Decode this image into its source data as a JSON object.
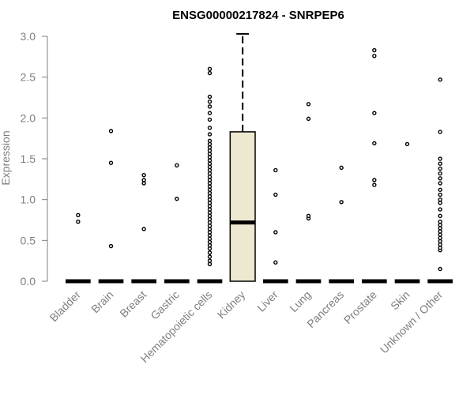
{
  "chart_data": {
    "type": "box",
    "title": "ENSG00000217824 - SNRPEP6",
    "xlabel": "",
    "ylabel": "Expression",
    "ylim": [
      0,
      3.05
    ],
    "yticks": [
      0.0,
      0.5,
      1.0,
      1.5,
      2.0,
      2.5,
      3.0
    ],
    "ytick_labels": [
      "0.0",
      "0.5",
      "1.0",
      "1.5",
      "2.0",
      "2.5",
      "3.0"
    ],
    "categories": [
      "Bladder",
      "Brain",
      "Breast",
      "Gastric",
      "Hematopoietic cells",
      "Kidney",
      "Liver",
      "Lung",
      "Pancreas",
      "Prostate",
      "Skin",
      "Unknown / Other"
    ],
    "box_fill": "#ede8d0",
    "boxes": [
      {
        "category": "Bladder",
        "min": 0,
        "q1": 0,
        "median": 0,
        "q3": 0,
        "max": 0,
        "outliers": [
          0.73,
          0.81
        ]
      },
      {
        "category": "Brain",
        "min": 0,
        "q1": 0,
        "median": 0,
        "q3": 0,
        "max": 0,
        "outliers": [
          0.43,
          1.45,
          1.84
        ]
      },
      {
        "category": "Breast",
        "min": 0,
        "q1": 0,
        "median": 0,
        "q3": 0,
        "max": 0,
        "outliers": [
          0.64,
          1.2,
          1.24,
          1.3
        ]
      },
      {
        "category": "Gastric",
        "min": 0,
        "q1": 0,
        "median": 0,
        "q3": 0,
        "max": 0,
        "outliers": [
          1.01,
          1.42
        ]
      },
      {
        "category": "Hematopoietic cells",
        "min": 0,
        "q1": 0,
        "median": 0,
        "q3": 0,
        "max": 0,
        "outliers": [
          0.21,
          0.25,
          0.3,
          0.35,
          0.4,
          0.44,
          0.48,
          0.52,
          0.56,
          0.6,
          0.64,
          0.68,
          0.72,
          0.76,
          0.8,
          0.84,
          0.88,
          0.92,
          0.96,
          1.0,
          1.04,
          1.08,
          1.12,
          1.16,
          1.2,
          1.24,
          1.28,
          1.32,
          1.36,
          1.4,
          1.44,
          1.48,
          1.52,
          1.56,
          1.6,
          1.64,
          1.68,
          1.72,
          1.8,
          1.88,
          1.98,
          2.06,
          2.14,
          2.2,
          2.26,
          2.55,
          2.6
        ]
      },
      {
        "category": "Kidney",
        "min": 0,
        "q1": 0,
        "median": 0.72,
        "q3": 1.83,
        "max": 3.03,
        "outliers": []
      },
      {
        "category": "Liver",
        "min": 0,
        "q1": 0,
        "median": 0,
        "q3": 0,
        "max": 0,
        "outliers": [
          0.23,
          0.6,
          1.06,
          1.36
        ]
      },
      {
        "category": "Lung",
        "min": 0,
        "q1": 0,
        "median": 0,
        "q3": 0,
        "max": 0,
        "outliers": [
          0.77,
          0.8,
          1.99,
          2.17
        ]
      },
      {
        "category": "Pancreas",
        "min": 0,
        "q1": 0,
        "median": 0,
        "q3": 0,
        "max": 0,
        "outliers": [
          0.97,
          1.39
        ]
      },
      {
        "category": "Prostate",
        "min": 0,
        "q1": 0,
        "median": 0,
        "q3": 0,
        "max": 0,
        "outliers": [
          1.18,
          1.24,
          1.69,
          2.06,
          2.76,
          2.83
        ]
      },
      {
        "category": "Skin",
        "min": 0,
        "q1": 0,
        "median": 0,
        "q3": 0,
        "max": 0,
        "outliers": [
          1.68
        ]
      },
      {
        "category": "Unknown / Other",
        "min": 0,
        "q1": 0,
        "median": 0,
        "q3": 0,
        "max": 0,
        "outliers": [
          0.15,
          0.38,
          0.41,
          0.45,
          0.49,
          0.53,
          0.57,
          0.61,
          0.65,
          0.69,
          0.73,
          0.8,
          0.88,
          0.96,
          1.0,
          1.06,
          1.12,
          1.2,
          1.26,
          1.32,
          1.38,
          1.44,
          1.5,
          1.83,
          2.47
        ]
      }
    ]
  }
}
